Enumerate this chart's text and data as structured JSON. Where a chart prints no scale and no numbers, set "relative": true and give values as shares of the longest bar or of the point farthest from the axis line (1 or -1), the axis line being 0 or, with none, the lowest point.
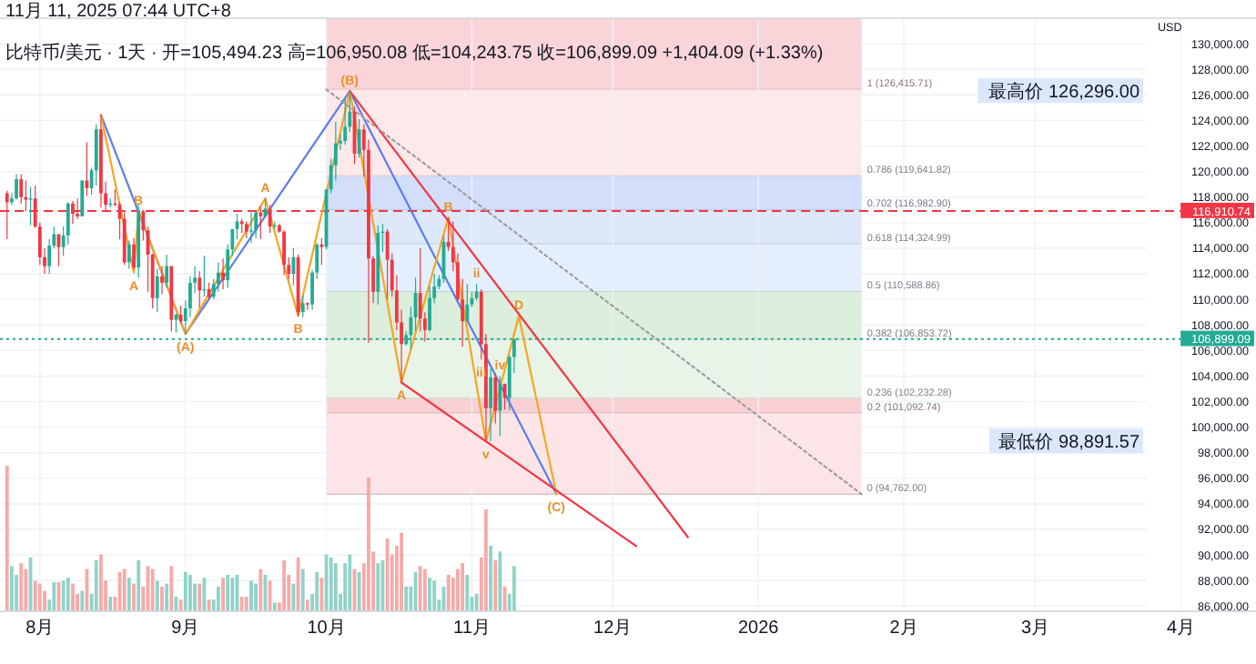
{
  "chart_data": [
    {
      "type": "candlestick",
      "title": "比特币/美元 · 1天 · 开=105,494.23 高=106,950.08 低=104,243.75 收=106,899.09 +1,404.09 (+1.33%)",
      "ylabel": "USD",
      "tick_labels": "y",
      "grid": "y",
      "xlim": [
        "2025-07-23T12:00",
        "2026-04-17"
      ],
      "ylim": [
        85600,
        132000
      ],
      "yticks": [
        {
          "value": 86000,
          "label": "86,000.00"
        },
        {
          "value": 88000,
          "label": "88,000.00"
        },
        {
          "value": 90000,
          "label": "90,000.00"
        },
        {
          "value": 92000,
          "label": "92,000.00"
        },
        {
          "value": 94000,
          "label": "94,000.00"
        },
        {
          "value": 96000,
          "label": "96,000.00"
        },
        {
          "value": 98000,
          "label": "98,000.00"
        },
        {
          "value": 100000,
          "label": "100,000.00"
        },
        {
          "value": 102000,
          "label": "102,000.00"
        },
        {
          "value": 104000,
          "label": "104,000.00"
        },
        {
          "value": 106000,
          "label": "106,000.00"
        },
        {
          "value": 108000,
          "label": "108,000.00"
        },
        {
          "value": 110000,
          "label": "110,000.00"
        },
        {
          "value": 112000,
          "label": "112,000.00"
        },
        {
          "value": 114000,
          "label": "114,000.00"
        },
        {
          "value": 116000,
          "label": "116,000.00"
        },
        {
          "value": 118000,
          "label": "118,000.00"
        },
        {
          "value": 120000,
          "label": "120,000.00"
        },
        {
          "value": 122000,
          "label": "122,000.00"
        },
        {
          "value": 124000,
          "label": "124,000.00"
        },
        {
          "value": 126000,
          "label": "126,000.00"
        },
        {
          "value": 128000,
          "label": "128,000.00"
        },
        {
          "value": 130000,
          "label": "130,000.00"
        }
      ],
      "x": [
        "2025-07-25",
        "2025-07-26",
        "2025-07-27",
        "2025-07-28",
        "2025-07-29",
        "2025-07-30",
        "2025-07-31",
        "2025-08-01",
        "2025-08-02",
        "2025-08-03",
        "2025-08-04",
        "2025-08-05",
        "2025-08-06",
        "2025-08-07",
        "2025-08-08",
        "2025-08-09",
        "2025-08-10",
        "2025-08-11",
        "2025-08-12",
        "2025-08-13",
        "2025-08-14",
        "2025-08-15",
        "2025-08-16",
        "2025-08-17",
        "2025-08-18",
        "2025-08-19",
        "2025-08-20",
        "2025-08-21",
        "2025-08-22",
        "2025-08-23",
        "2025-08-24",
        "2025-08-25",
        "2025-08-26",
        "2025-08-27",
        "2025-08-28",
        "2025-08-29",
        "2025-08-30",
        "2025-08-31",
        "2025-09-01",
        "2025-09-02",
        "2025-09-03",
        "2025-09-04",
        "2025-09-05",
        "2025-09-06",
        "2025-09-07",
        "2025-09-08",
        "2025-09-09",
        "2025-09-10",
        "2025-09-11",
        "2025-09-12",
        "2025-09-13",
        "2025-09-14",
        "2025-09-15",
        "2025-09-16",
        "2025-09-17",
        "2025-09-18",
        "2025-09-19",
        "2025-09-20",
        "2025-09-21",
        "2025-09-22",
        "2025-09-23",
        "2025-09-24",
        "2025-09-25",
        "2025-09-26",
        "2025-09-27",
        "2025-09-28",
        "2025-09-29",
        "2025-09-30",
        "2025-10-01",
        "2025-10-02",
        "2025-10-03",
        "2025-10-04",
        "2025-10-05",
        "2025-10-06",
        "2025-10-07",
        "2025-10-08",
        "2025-10-09",
        "2025-10-10",
        "2025-10-11",
        "2025-10-12",
        "2025-10-13",
        "2025-10-14",
        "2025-10-15",
        "2025-10-16",
        "2025-10-17",
        "2025-10-18",
        "2025-10-19",
        "2025-10-20",
        "2025-10-21",
        "2025-10-22",
        "2025-10-23",
        "2025-10-24",
        "2025-10-25",
        "2025-10-26",
        "2025-10-27",
        "2025-10-28",
        "2025-10-29",
        "2025-10-30",
        "2025-10-31",
        "2025-11-01",
        "2025-11-02",
        "2025-11-03",
        "2025-11-04",
        "2025-11-05",
        "2025-11-06",
        "2025-11-07",
        "2025-11-08",
        "2025-11-09",
        "2025-11-10"
      ],
      "ohlc": [
        [
          118300,
          118500,
          114700,
          117600
        ],
        [
          117600,
          118300,
          117400,
          117900
        ],
        [
          117900,
          119800,
          117800,
          119400
        ],
        [
          119400,
          119800,
          117500,
          118000
        ],
        [
          118000,
          119300,
          116900,
          117800
        ],
        [
          117800,
          118800,
          115800,
          117900
        ],
        [
          117900,
          118900,
          115600,
          115700
        ],
        [
          115700,
          116000,
          112700,
          113300
        ],
        [
          113300,
          114000,
          112000,
          112600
        ],
        [
          112600,
          114700,
          112000,
          114200
        ],
        [
          114200,
          115700,
          114000,
          115100
        ],
        [
          115100,
          115100,
          112600,
          114100
        ],
        [
          114100,
          115700,
          113400,
          115000
        ],
        [
          115000,
          117600,
          114300,
          117500
        ],
        [
          117500,
          117700,
          115900,
          116700
        ],
        [
          116700,
          117900,
          116300,
          116500
        ],
        [
          116500,
          119300,
          116500,
          119300
        ],
        [
          119300,
          122300,
          118100,
          118700
        ],
        [
          118700,
          120300,
          118200,
          120100
        ],
        [
          120100,
          123700,
          118900,
          123300
        ],
        [
          123300,
          124450,
          117200,
          118300
        ],
        [
          118300,
          119200,
          116800,
          117400
        ],
        [
          117400,
          117900,
          117200,
          117500
        ],
        [
          117500,
          118600,
          117300,
          117400
        ],
        [
          117400,
          117600,
          114700,
          116300
        ],
        [
          116300,
          116800,
          112700,
          112900
        ],
        [
          112900,
          114600,
          112400,
          114300
        ],
        [
          114300,
          114800,
          112400,
          112500
        ],
        [
          112500,
          117400,
          111700,
          116900
        ],
        [
          116900,
          117000,
          114600,
          115400
        ],
        [
          115400,
          115700,
          110600,
          113500
        ],
        [
          113500,
          113600,
          109300,
          110100
        ],
        [
          110100,
          112400,
          109000,
          111800
        ],
        [
          111800,
          112600,
          110400,
          111300
        ],
        [
          111300,
          113500,
          110900,
          112600
        ],
        [
          112600,
          112600,
          107500,
          108400
        ],
        [
          108400,
          108900,
          107400,
          108800
        ],
        [
          108800,
          109500,
          108100,
          108300
        ],
        [
          108300,
          109900,
          107300,
          109300
        ],
        [
          109300,
          111800,
          108600,
          111300
        ],
        [
          111300,
          112600,
          110500,
          111700
        ],
        [
          111700,
          112200,
          109300,
          110700
        ],
        [
          110700,
          113400,
          110200,
          110800
        ],
        [
          110800,
          111300,
          110000,
          110200
        ],
        [
          110200,
          111600,
          110000,
          111200
        ],
        [
          111200,
          112900,
          110600,
          112100
        ],
        [
          112100,
          113200,
          110800,
          111500
        ],
        [
          111500,
          114300,
          110900,
          113900
        ],
        [
          113900,
          115500,
          113400,
          115500
        ],
        [
          115500,
          116700,
          114700,
          116100
        ],
        [
          116100,
          116300,
          115200,
          115900
        ],
        [
          115900,
          116100,
          114800,
          115300
        ],
        [
          115300,
          116800,
          114400,
          115400
        ],
        [
          115400,
          116900,
          114800,
          116800
        ],
        [
          116800,
          117300,
          114700,
          116500
        ],
        [
          116500,
          117900,
          116400,
          117100
        ],
        [
          117100,
          117400,
          115200,
          115700
        ],
        [
          115700,
          116100,
          115500,
          115800
        ],
        [
          115800,
          115900,
          115200,
          115300
        ],
        [
          115300,
          115400,
          111900,
          112700
        ],
        [
          112700,
          113300,
          111600,
          112000
        ],
        [
          112000,
          114000,
          111100,
          113300
        ],
        [
          113300,
          113500,
          108700,
          109000
        ],
        [
          109000,
          110300,
          108600,
          109700
        ],
        [
          109700,
          109800,
          109200,
          109600
        ],
        [
          109600,
          112300,
          109200,
          112100
        ],
        [
          112100,
          114400,
          111600,
          114300
        ],
        [
          114300,
          114800,
          112700,
          114100
        ],
        [
          114100,
          118600,
          113900,
          118600
        ],
        [
          118600,
          121000,
          118300,
          120500
        ],
        [
          120500,
          123900,
          119300,
          122200
        ],
        [
          122200,
          122900,
          121700,
          122400
        ],
        [
          122400,
          125700,
          122100,
          123500
        ],
        [
          123500,
          126296,
          123100,
          124700
        ],
        [
          124700,
          125100,
          120600,
          121400
        ],
        [
          121400,
          124100,
          121100,
          123300
        ],
        [
          123300,
          123700,
          119600,
          121700
        ],
        [
          121700,
          122500,
          106600,
          113200
        ],
        [
          113200,
          113400,
          109700,
          110600
        ],
        [
          110600,
          115800,
          109600,
          115200
        ],
        [
          115200,
          115900,
          113700,
          115300
        ],
        [
          115300,
          115500,
          110000,
          113100
        ],
        [
          113100,
          113600,
          110200,
          110700
        ],
        [
          110700,
          111900,
          107600,
          108200
        ],
        [
          108200,
          109200,
          103500,
          106500
        ],
        [
          106500,
          107500,
          106400,
          107200
        ],
        [
          107200,
          109400,
          106100,
          108600
        ],
        [
          108600,
          111700,
          107500,
          110500
        ],
        [
          110500,
          114000,
          107500,
          108500
        ],
        [
          108500,
          109000,
          106700,
          107600
        ],
        [
          107600,
          111000,
          107500,
          110100
        ],
        [
          110100,
          112000,
          109700,
          111000
        ],
        [
          111000,
          111900,
          110800,
          111600
        ],
        [
          111600,
          115000,
          111300,
          114500
        ],
        [
          114500,
          116400,
          113800,
          114100
        ],
        [
          114100,
          116100,
          112200,
          112900
        ],
        [
          112900,
          113600,
          109900,
          110000
        ],
        [
          110000,
          111600,
          106300,
          108300
        ],
        [
          108300,
          111200,
          108300,
          109600
        ],
        [
          109600,
          110600,
          109400,
          110100
        ],
        [
          110100,
          111200,
          109900,
          110600
        ],
        [
          110600,
          110800,
          105300,
          106500
        ],
        [
          106500,
          107300,
          98891.57,
          101500
        ],
        [
          101500,
          104600,
          98900,
          103900
        ],
        [
          103900,
          104200,
          100300,
          101300
        ],
        [
          101300,
          104000,
          99300,
          103400
        ],
        [
          103400,
          103400,
          101400,
          102300
        ],
        [
          102300,
          105600,
          101300,
          105495
        ],
        [
          105494.23,
          106950.08,
          104243.75,
          106899.09
        ]
      ],
      "colors": [
        "#f23645",
        "#22ab94",
        "#22ab94",
        "#f23645",
        "#f23645",
        "#22ab94",
        "#f23645",
        "#f23645",
        "#f23645",
        "#22ab94",
        "#22ab94",
        "#f23645",
        "#22ab94",
        "#22ab94",
        "#f23645",
        "#f23645",
        "#22ab94",
        "#f23645",
        "#22ab94",
        "#22ab94",
        "#f23645",
        "#f23645",
        "#22ab94",
        "#f23645",
        "#f23645",
        "#f23645",
        "#22ab94",
        "#f23645",
        "#22ab94",
        "#f23645",
        "#f23645",
        "#f23645",
        "#22ab94",
        "#f23645",
        "#22ab94",
        "#f23645",
        "#22ab94",
        "#f23645",
        "#22ab94",
        "#22ab94",
        "#22ab94",
        "#f23645",
        "#22ab94",
        "#f23645",
        "#22ab94",
        "#22ab94",
        "#f23645",
        "#22ab94",
        "#22ab94",
        "#22ab94",
        "#f23645",
        "#f23645",
        "#22ab94",
        "#22ab94",
        "#f23645",
        "#22ab94",
        "#f23645",
        "#22ab94",
        "#f23645",
        "#f23645",
        "#f23645",
        "#22ab94",
        "#f23645",
        "#22ab94",
        "#f23645",
        "#22ab94",
        "#22ab94",
        "#f23645",
        "#22ab94",
        "#22ab94",
        "#22ab94",
        "#22ab94",
        "#22ab94",
        "#22ab94",
        "#f23645",
        "#22ab94",
        "#f23645",
        "#f23645",
        "#f23645",
        "#22ab94",
        "#22ab94",
        "#f23645",
        "#f23645",
        "#f23645",
        "#f23645",
        "#22ab94",
        "#22ab94",
        "#22ab94",
        "#f23645",
        "#f23645",
        "#22ab94",
        "#22ab94",
        "#22ab94",
        "#22ab94",
        "#f23645",
        "#f23645",
        "#f23645",
        "#f23645",
        "#22ab94",
        "#22ab94",
        "#22ab94",
        "#f23645",
        "#f23645",
        "#22ab94",
        "#f23645",
        "#22ab94",
        "#f23645",
        "#22ab94",
        "#22ab94"
      ],
      "series": [
        {
          "type": "line",
          "color": "#5b7cf0",
          "x": [
            "2025-08-14",
            "2025-09-01",
            "2025-10-06",
            "2025-11-19"
          ],
          "values": [
            124450,
            107300,
            126296,
            94762
          ]
        },
        {
          "type": "line",
          "color": "#f5a623",
          "x": [
            "2025-08-14",
            "2025-08-21",
            "2025-08-22",
            "2025-09-01",
            "2025-09-18",
            "2025-09-25",
            "2025-10-06",
            "2025-10-17",
            "2025-10-27",
            "2025-11-04",
            "2025-11-11",
            "2025-11-19"
          ],
          "values": [
            124450,
            112100,
            116900,
            107300,
            117900,
            108700,
            126296,
            103500,
            116400,
            98891.57,
            108700,
            94762
          ]
        },
        {
          "type": "line",
          "color": "#f23645",
          "x": [
            "2025-10-06",
            "2025-12-17"
          ],
          "values": [
            126296,
            91400
          ]
        },
        {
          "type": "line",
          "color": "#f23645",
          "x": [
            "2025-10-17",
            "2025-12-06"
          ],
          "values": [
            103500,
            90700
          ]
        },
        {
          "type": "line",
          "color": "#9e9e9e",
          "line_style": "dotted",
          "x": [
            "2025-10-01",
            "2026-01-23"
          ],
          "values": [
            126415.71,
            94762
          ]
        }
      ],
      "bands": [
        {
          "axis": "y",
          "from": 126415.71,
          "to": 132000,
          "color": "#f9d4d8",
          "label": "1 (126,415.71)"
        },
        {
          "axis": "y",
          "from": 119641.82,
          "to": 126415.71,
          "color": "#fde8ea",
          "label": "0.786 (119,641.82)"
        },
        {
          "axis": "y",
          "from": 116982.9,
          "to": 119641.82,
          "color": "#d3defb",
          "label": "0.702 (116,982.90)"
        },
        {
          "axis": "y",
          "from": 114324.99,
          "to": 116982.9,
          "color": "#dde8fb",
          "label": "0.618 (114,324.99)"
        },
        {
          "axis": "y",
          "from": 110588.86,
          "to": 114324.99,
          "color": "#e3effc",
          "label": "0.5 (110,588.86)"
        },
        {
          "axis": "y",
          "from": 106853.72,
          "to": 110588.86,
          "color": "#dcefdc",
          "label": "0.382 (106,853.72)"
        },
        {
          "axis": "y",
          "from": 102232.28,
          "to": 106853.72,
          "color": "#e8f4e7",
          "label": "0.236 (102,232.28)"
        },
        {
          "axis": "y",
          "from": 101092.74,
          "to": 102232.28,
          "color": "#f9d0d4",
          "label": "0.2 (101,092.74)"
        },
        {
          "axis": "y",
          "from": 94762,
          "to": 101092.74,
          "color": "#fde5e7",
          "label": "0 (94,762.00)"
        }
      ],
      "ref_lines": [
        {
          "axis": "y",
          "value": 116910.74,
          "label": "116,910.74",
          "color": "#f23645",
          "line_style": "dashed"
        },
        {
          "axis": "y",
          "value": 106899.09,
          "label": "106,899.09",
          "color": "#22ab94",
          "line_style": "dotted"
        }
      ],
      "annotations": [
        "11月 11, 2025 07:44 UTC+8",
        "最高价 126,296.00",
        "最低价 98,891.57",
        {
          "text": "B",
          "x": "2025-08-22",
          "y": 116900
        },
        {
          "text": "A",
          "x": "2025-08-21",
          "y": 112100
        },
        {
          "text": "(A)",
          "x": "2025-09-01",
          "y": 107300
        },
        {
          "text": "A",
          "x": "2025-09-18",
          "y": 117900
        },
        {
          "text": "B",
          "x": "2025-09-25",
          "y": 108700
        },
        {
          "text": "(B)",
          "x": "2025-10-06",
          "y": 126296
        },
        {
          "text": "A",
          "x": "2025-10-17",
          "y": 103500
        },
        {
          "text": "B",
          "x": "2025-10-27",
          "y": 116400
        },
        {
          "text": "ii",
          "x": "2025-11-02",
          "y": 111200
        },
        {
          "text": "iii",
          "x": "2025-11-03",
          "y": 105300
        },
        {
          "text": "iv",
          "x": "2025-11-07",
          "y": 104000
        },
        {
          "text": "v",
          "x": "2025-11-04",
          "y": 98891.57
        },
        {
          "text": "D",
          "x": "2025-11-11",
          "y": 108700
        },
        {
          "text": "(C)",
          "x": "2025-11-19",
          "y": 94762
        }
      ]
    },
    {
      "type": "bar",
      "relative": true,
      "tick_labels": "x",
      "grid": "x",
      "xlim": [
        "2025-07-23T12:00",
        "2026-04-17"
      ],
      "xticks": [
        {
          "value": "2025-08-01",
          "label": "8月"
        },
        {
          "value": "2025-09-01",
          "label": "9月"
        },
        {
          "value": "2025-10-01",
          "label": "10月"
        },
        {
          "value": "2025-11-01",
          "label": "11月"
        },
        {
          "value": "2025-12-01",
          "label": "12月"
        },
        {
          "value": "2026-01-01",
          "label": "2026"
        },
        {
          "value": "2026-02-01",
          "label": "2月"
        },
        {
          "value": "2026-03-01",
          "label": "3月"
        },
        {
          "value": "2026-04-01",
          "label": "4月"
        }
      ],
      "x": [
        "2025-07-25",
        "2025-07-26",
        "2025-07-27",
        "2025-07-28",
        "2025-07-29",
        "2025-07-30",
        "2025-07-31",
        "2025-08-01",
        "2025-08-02",
        "2025-08-03",
        "2025-08-04",
        "2025-08-05",
        "2025-08-06",
        "2025-08-07",
        "2025-08-08",
        "2025-08-09",
        "2025-08-10",
        "2025-08-11",
        "2025-08-12",
        "2025-08-13",
        "2025-08-14",
        "2025-08-15",
        "2025-08-16",
        "2025-08-17",
        "2025-08-18",
        "2025-08-19",
        "2025-08-20",
        "2025-08-21",
        "2025-08-22",
        "2025-08-23",
        "2025-08-24",
        "2025-08-25",
        "2025-08-26",
        "2025-08-27",
        "2025-08-28",
        "2025-08-29",
        "2025-08-30",
        "2025-08-31",
        "2025-09-01",
        "2025-09-02",
        "2025-09-03",
        "2025-09-04",
        "2025-09-05",
        "2025-09-06",
        "2025-09-07",
        "2025-09-08",
        "2025-09-09",
        "2025-09-10",
        "2025-09-11",
        "2025-09-12",
        "2025-09-13",
        "2025-09-14",
        "2025-09-15",
        "2025-09-16",
        "2025-09-17",
        "2025-09-18",
        "2025-09-19",
        "2025-09-20",
        "2025-09-21",
        "2025-09-22",
        "2025-09-23",
        "2025-09-24",
        "2025-09-25",
        "2025-09-26",
        "2025-09-27",
        "2025-09-28",
        "2025-09-29",
        "2025-09-30",
        "2025-10-01",
        "2025-10-02",
        "2025-10-03",
        "2025-10-04",
        "2025-10-05",
        "2025-10-06",
        "2025-10-07",
        "2025-10-08",
        "2025-10-09",
        "2025-10-10",
        "2025-10-11",
        "2025-10-12",
        "2025-10-13",
        "2025-10-14",
        "2025-10-15",
        "2025-10-16",
        "2025-10-17",
        "2025-10-18",
        "2025-10-19",
        "2025-10-20",
        "2025-10-21",
        "2025-10-22",
        "2025-10-23",
        "2025-10-24",
        "2025-10-25",
        "2025-10-26",
        "2025-10-27",
        "2025-10-28",
        "2025-10-29",
        "2025-10-30",
        "2025-10-31",
        "2025-11-01",
        "2025-11-02",
        "2025-11-03",
        "2025-11-04",
        "2025-11-05",
        "2025-11-06",
        "2025-11-07",
        "2025-11-08",
        "2025-11-09",
        "2025-11-10"
      ],
      "values": [
        1.0,
        0.31,
        0.25,
        0.33,
        0.29,
        0.37,
        0.21,
        0.19,
        0.14,
        0.08,
        0.2,
        0.2,
        0.21,
        0.23,
        0.19,
        0.12,
        0.14,
        0.29,
        0.12,
        0.35,
        0.39,
        0.21,
        0.1,
        0.1,
        0.27,
        0.29,
        0.23,
        0.19,
        0.35,
        0.17,
        0.31,
        0.29,
        0.21,
        0.17,
        0.19,
        0.31,
        0.1,
        0.08,
        0.27,
        0.25,
        0.19,
        0.19,
        0.23,
        0.08,
        0.08,
        0.17,
        0.23,
        0.25,
        0.23,
        0.25,
        0.1,
        0.1,
        0.21,
        0.19,
        0.29,
        0.25,
        0.21,
        0.06,
        0.06,
        0.35,
        0.25,
        0.19,
        0.37,
        0.29,
        0.08,
        0.12,
        0.27,
        0.23,
        0.39,
        0.37,
        0.33,
        0.12,
        0.33,
        0.39,
        0.29,
        0.27,
        0.33,
        0.92,
        0.41,
        0.33,
        0.35,
        0.5,
        0.39,
        0.45,
        0.54,
        0.17,
        0.17,
        0.27,
        0.31,
        0.29,
        0.23,
        0.21,
        0.08,
        0.17,
        0.25,
        0.23,
        0.29,
        0.33,
        0.25,
        0.1,
        0.12,
        0.37,
        0.7,
        0.45,
        0.35,
        0.41,
        0.17,
        0.12,
        0.31
      ],
      "colors": [
        "#f7a9a7",
        "#8fd3c7",
        "#8fd3c7",
        "#f7a9a7",
        "#f7a9a7",
        "#8fd3c7",
        "#f7a9a7",
        "#f7a9a7",
        "#f7a9a7",
        "#8fd3c7",
        "#8fd3c7",
        "#f7a9a7",
        "#8fd3c7",
        "#8fd3c7",
        "#f7a9a7",
        "#f7a9a7",
        "#8fd3c7",
        "#f7a9a7",
        "#8fd3c7",
        "#8fd3c7",
        "#f7a9a7",
        "#f7a9a7",
        "#8fd3c7",
        "#f7a9a7",
        "#f7a9a7",
        "#f7a9a7",
        "#8fd3c7",
        "#f7a9a7",
        "#8fd3c7",
        "#f7a9a7",
        "#f7a9a7",
        "#f7a9a7",
        "#8fd3c7",
        "#f7a9a7",
        "#8fd3c7",
        "#f7a9a7",
        "#8fd3c7",
        "#f7a9a7",
        "#8fd3c7",
        "#8fd3c7",
        "#8fd3c7",
        "#f7a9a7",
        "#8fd3c7",
        "#f7a9a7",
        "#8fd3c7",
        "#8fd3c7",
        "#f7a9a7",
        "#8fd3c7",
        "#8fd3c7",
        "#8fd3c7",
        "#f7a9a7",
        "#f7a9a7",
        "#8fd3c7",
        "#8fd3c7",
        "#f7a9a7",
        "#8fd3c7",
        "#f7a9a7",
        "#8fd3c7",
        "#f7a9a7",
        "#f7a9a7",
        "#f7a9a7",
        "#8fd3c7",
        "#f7a9a7",
        "#8fd3c7",
        "#f7a9a7",
        "#8fd3c7",
        "#8fd3c7",
        "#f7a9a7",
        "#8fd3c7",
        "#8fd3c7",
        "#8fd3c7",
        "#8fd3c7",
        "#8fd3c7",
        "#8fd3c7",
        "#f7a9a7",
        "#8fd3c7",
        "#f7a9a7",
        "#f7a9a7",
        "#f7a9a7",
        "#8fd3c7",
        "#8fd3c7",
        "#f7a9a7",
        "#f7a9a7",
        "#f7a9a7",
        "#f7a9a7",
        "#8fd3c7",
        "#8fd3c7",
        "#8fd3c7",
        "#f7a9a7",
        "#f7a9a7",
        "#8fd3c7",
        "#8fd3c7",
        "#8fd3c7",
        "#8fd3c7",
        "#f7a9a7",
        "#f7a9a7",
        "#f7a9a7",
        "#f7a9a7",
        "#8fd3c7",
        "#8fd3c7",
        "#8fd3c7",
        "#f7a9a7",
        "#f7a9a7",
        "#8fd3c7",
        "#f7a9a7",
        "#8fd3c7",
        "#f7a9a7",
        "#8fd3c7",
        "#8fd3c7"
      ]
    }
  ]
}
